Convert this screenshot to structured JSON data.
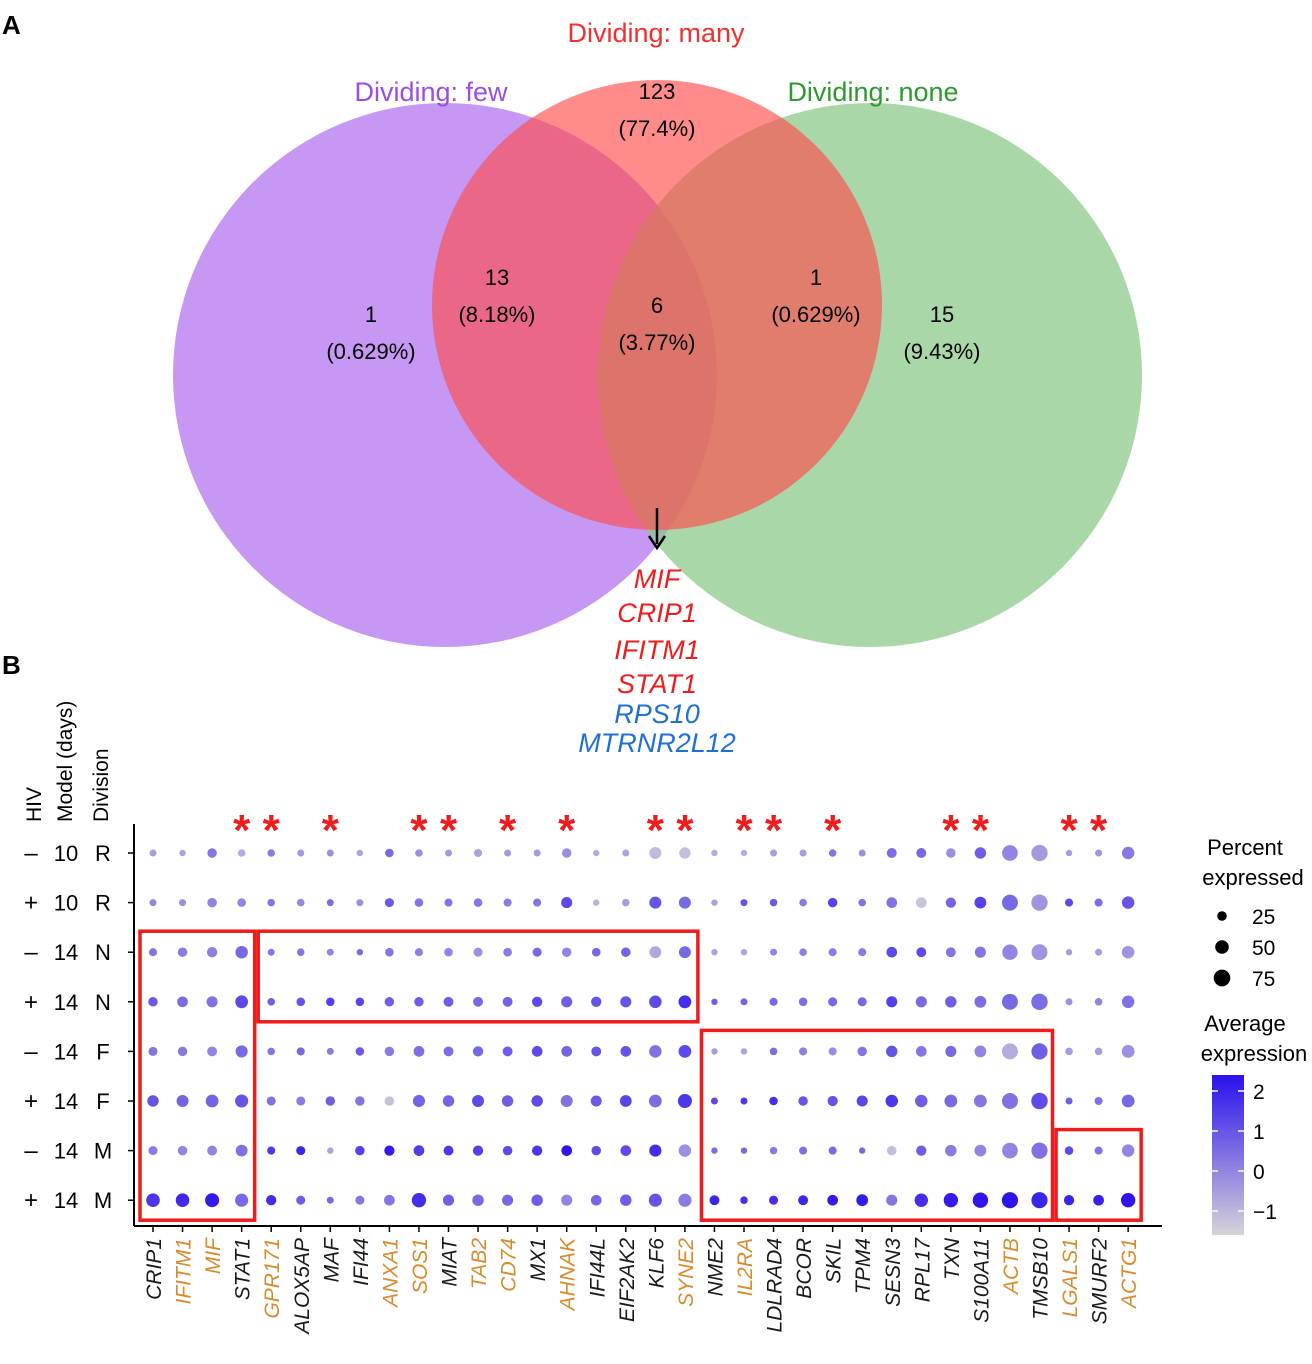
{
  "panels": {
    "a": "A",
    "b": "B"
  },
  "colors": {
    "few": "#9a4de6",
    "many": "#f0302e",
    "none": "#2e9a2e",
    "few_fill": "#c391f2",
    "many_fill": "#ff4d4d",
    "none_fill": "#8ec98b",
    "star": "#ee1c1c",
    "orange_gene": "#d98a2d",
    "black_gene": "#1a1a1a",
    "red_gene": "#ee1c1c",
    "blue_gene": "#1f6fd6",
    "box": "#ee1c1c",
    "color_high": "#2a10ee",
    "color_low": "#d6d3d8"
  },
  "venn": {
    "sets": {
      "few": "Dividing: few",
      "many": "Dividing: many",
      "none": "Dividing: none"
    },
    "regions": {
      "few_only": {
        "count": "1",
        "pct": "(0.629%)"
      },
      "many_only": {
        "count": "123",
        "pct": "(77.4%)"
      },
      "none_only": {
        "count": "15",
        "pct": "(9.43%)"
      },
      "few_many": {
        "count": "13",
        "pct": "(8.18%)"
      },
      "many_none": {
        "count": "1",
        "pct": "(0.629%)"
      },
      "all": {
        "count": "6",
        "pct": "(3.77%)"
      }
    },
    "shared_genes": [
      {
        "name": "MIF",
        "color": "red"
      },
      {
        "name": "CRIP1",
        "color": "red"
      },
      {
        "name": "IFITM1",
        "color": "red"
      },
      {
        "name": "STAT1",
        "color": "red"
      },
      {
        "name": "RPS10",
        "color": "blue"
      },
      {
        "name": "MTRNR2L12",
        "color": "blue"
      }
    ]
  },
  "chart_data": {
    "type": "dotplot",
    "title": "",
    "row_header_labels": [
      "HIV",
      "Model (days)",
      "Division"
    ],
    "rows": [
      {
        "hiv": "–",
        "days": "10",
        "div": "R"
      },
      {
        "hiv": "+",
        "days": "10",
        "div": "R"
      },
      {
        "hiv": "–",
        "days": "14",
        "div": "N"
      },
      {
        "hiv": "+",
        "days": "14",
        "div": "N"
      },
      {
        "hiv": "–",
        "days": "14",
        "div": "F"
      },
      {
        "hiv": "+",
        "days": "14",
        "div": "F"
      },
      {
        "hiv": "–",
        "days": "14",
        "div": "M"
      },
      {
        "hiv": "+",
        "days": "14",
        "div": "M"
      }
    ],
    "genes": [
      {
        "name": "CRIP1",
        "color": "black",
        "star": false
      },
      {
        "name": "IFITM1",
        "color": "orange",
        "star": false
      },
      {
        "name": "MIF",
        "color": "orange",
        "star": false
      },
      {
        "name": "STAT1",
        "color": "black",
        "star": true
      },
      {
        "name": "GPR171",
        "color": "orange",
        "star": true
      },
      {
        "name": "ALOX5AP",
        "color": "black",
        "star": false
      },
      {
        "name": "MAF",
        "color": "black",
        "star": true
      },
      {
        "name": "IFI44",
        "color": "black",
        "star": false
      },
      {
        "name": "ANXA1",
        "color": "orange",
        "star": false
      },
      {
        "name": "SOS1",
        "color": "orange",
        "star": true
      },
      {
        "name": "MIAT",
        "color": "black",
        "star": true
      },
      {
        "name": "TAB2",
        "color": "orange",
        "star": false
      },
      {
        "name": "CD74",
        "color": "orange",
        "star": true
      },
      {
        "name": "MX1",
        "color": "black",
        "star": false
      },
      {
        "name": "AHNAK",
        "color": "orange",
        "star": true
      },
      {
        "name": "IFI44L",
        "color": "black",
        "star": false
      },
      {
        "name": "EIF2AK2",
        "color": "black",
        "star": false
      },
      {
        "name": "KLF6",
        "color": "black",
        "star": true
      },
      {
        "name": "SYNE2",
        "color": "orange",
        "star": true
      },
      {
        "name": "NME2",
        "color": "black",
        "star": false
      },
      {
        "name": "IL2RA",
        "color": "orange",
        "star": true
      },
      {
        "name": "LDLRAD4",
        "color": "black",
        "star": true
      },
      {
        "name": "BCOR",
        "color": "black",
        "star": false
      },
      {
        "name": "SKIL",
        "color": "black",
        "star": true
      },
      {
        "name": "TPM4",
        "color": "black",
        "star": false
      },
      {
        "name": "SESN3",
        "color": "black",
        "star": false
      },
      {
        "name": "RPL17",
        "color": "black",
        "star": false
      },
      {
        "name": "TXN",
        "color": "black",
        "star": true
      },
      {
        "name": "S100A11",
        "color": "black",
        "star": true
      },
      {
        "name": "ACTB",
        "color": "orange",
        "star": false
      },
      {
        "name": "TMSB10",
        "color": "black",
        "star": false
      },
      {
        "name": "LGALS1",
        "color": "orange",
        "star": true
      },
      {
        "name": "SMURF2",
        "color": "black",
        "star": true
      },
      {
        "name": "ACTG1",
        "color": "orange",
        "star": false
      }
    ],
    "star_symbol": "*",
    "size": [
      [
        12,
        10,
        22,
        14,
        14,
        12,
        12,
        10,
        18,
        14,
        12,
        16,
        12,
        12,
        22,
        10,
        12,
        35,
        32,
        10,
        10,
        12,
        12,
        14,
        12,
        24,
        24,
        22,
        32,
        60,
        65,
        10,
        12,
        38
      ],
      [
        12,
        12,
        22,
        18,
        14,
        14,
        12,
        12,
        20,
        18,
        16,
        18,
        16,
        16,
        30,
        10,
        14,
        35,
        35,
        10,
        12,
        14,
        14,
        22,
        14,
        28,
        28,
        26,
        34,
        62,
        65,
        16,
        16,
        38
      ],
      [
        16,
        22,
        26,
        38,
        12,
        14,
        12,
        10,
        18,
        16,
        18,
        20,
        18,
        20,
        22,
        18,
        22,
        34,
        35,
        10,
        10,
        12,
        14,
        16,
        16,
        28,
        24,
        24,
        30,
        58,
        62,
        10,
        12,
        38
      ],
      [
        22,
        28,
        30,
        40,
        14,
        18,
        18,
        18,
        22,
        22,
        24,
        24,
        24,
        26,
        30,
        26,
        30,
        38,
        40,
        10,
        12,
        16,
        18,
        20,
        20,
        30,
        30,
        32,
        34,
        62,
        66,
        12,
        14,
        38
      ],
      [
        20,
        22,
        24,
        36,
        14,
        16,
        12,
        18,
        22,
        28,
        24,
        26,
        24,
        28,
        28,
        24,
        28,
        38,
        40,
        10,
        10,
        14,
        16,
        16,
        22,
        32,
        28,
        30,
        34,
        62,
        64,
        14,
        14,
        40
      ],
      [
        32,
        35,
        40,
        42,
        20,
        20,
        22,
        22,
        22,
        36,
        32,
        35,
        32,
        32,
        35,
        30,
        34,
        40,
        48,
        12,
        12,
        18,
        22,
        26,
        30,
        38,
        38,
        40,
        40,
        62,
        66,
        12,
        16,
        40
      ],
      [
        20,
        22,
        24,
        34,
        16,
        20,
        10,
        22,
        26,
        28,
        24,
        26,
        22,
        26,
        28,
        22,
        28,
        36,
        38,
        10,
        10,
        14,
        16,
        16,
        10,
        22,
        26,
        32,
        34,
        60,
        64,
        18,
        16,
        38
      ],
      [
        45,
        45,
        48,
        42,
        26,
        20,
        12,
        20,
        28,
        50,
        30,
        32,
        30,
        32,
        30,
        28,
        32,
        42,
        42,
        24,
        14,
        20,
        24,
        28,
        34,
        30,
        44,
        50,
        58,
        64,
        64,
        26,
        28,
        50
      ]
    ],
    "expr": [
      [
        -0.5,
        -0.6,
        0.3,
        -0.8,
        0.2,
        -0.4,
        -0.2,
        -0.6,
        0.6,
        -0.2,
        -0.4,
        -0.6,
        -0.4,
        -0.4,
        -0.2,
        -0.8,
        -0.6,
        -1.1,
        -1.2,
        -0.8,
        -0.8,
        -0.5,
        -0.5,
        0.3,
        -0.2,
        0.5,
        0.6,
        -0.2,
        0.8,
        0.0,
        -0.4,
        -0.5,
        -0.3,
        0.2
      ],
      [
        0.0,
        -0.2,
        0.0,
        0.0,
        0.3,
        -0.1,
        0.5,
        -0.2,
        0.9,
        0.3,
        0.3,
        0.3,
        0.2,
        0.3,
        1.2,
        -0.9,
        -0.5,
        1.0,
        0.6,
        -0.6,
        1.0,
        0.9,
        0.2,
        1.4,
        0.4,
        0.4,
        -1.3,
        0.7,
        1.4,
        0.6,
        -0.3,
        1.2,
        0.5,
        1.0
      ],
      [
        0.3,
        0.2,
        0.1,
        0.6,
        0.3,
        0.3,
        0.0,
        0.6,
        0.3,
        0.1,
        0.0,
        -0.2,
        0.2,
        0.6,
        0.0,
        0.6,
        0.7,
        -0.7,
        0.6,
        -0.6,
        -0.6,
        0.0,
        0.1,
        0.2,
        0.2,
        1.2,
        1.2,
        0.3,
        0.3,
        0.0,
        -0.3,
        -0.5,
        -0.5,
        -0.3
      ],
      [
        0.9,
        0.5,
        0.4,
        1.2,
        0.8,
        1.0,
        1.4,
        1.3,
        0.8,
        0.8,
        0.8,
        0.6,
        0.7,
        1.2,
        0.8,
        1.0,
        1.0,
        1.2,
        1.8,
        0.8,
        0.7,
        0.6,
        0.5,
        0.6,
        0.6,
        1.4,
        0.6,
        0.8,
        0.5,
        0.6,
        0.5,
        -0.2,
        0.0,
        0.4
      ],
      [
        0.3,
        0.2,
        0.0,
        0.6,
        0.3,
        0.6,
        0.2,
        0.9,
        0.2,
        0.5,
        0.5,
        0.6,
        0.8,
        1.2,
        0.7,
        1.0,
        1.0,
        0.4,
        1.2,
        -0.4,
        -0.6,
        0.5,
        0.1,
        -0.2,
        0.3,
        1.0,
        0.3,
        0.6,
        0.0,
        -0.8,
        0.8,
        -0.5,
        -0.5,
        -0.2
      ],
      [
        1.0,
        0.7,
        0.7,
        1.0,
        0.4,
        0.2,
        0.8,
        0.3,
        -1.2,
        0.7,
        0.7,
        1.2,
        0.8,
        1.2,
        0.4,
        0.9,
        1.3,
        0.5,
        1.6,
        1.2,
        1.6,
        1.8,
        1.0,
        1.0,
        1.3,
        1.6,
        0.8,
        0.6,
        0.3,
        0.4,
        1.2,
        0.8,
        0.4,
        0.6
      ],
      [
        0.2,
        0.0,
        0.0,
        0.4,
        1.6,
        2.0,
        -0.6,
        1.4,
        2.2,
        1.5,
        1.6,
        1.4,
        1.2,
        1.6,
        2.3,
        1.2,
        1.2,
        1.8,
        -0.2,
        0.5,
        0.6,
        0.2,
        0.4,
        0.6,
        0.6,
        -1.2,
        0.8,
        0.2,
        0.0,
        0.0,
        0.4,
        1.2,
        0.4,
        0.0
      ],
      [
        1.6,
        1.9,
        2.2,
        0.6,
        1.8,
        0.8,
        0.6,
        0.3,
        0.3,
        1.8,
        0.8,
        0.6,
        0.6,
        0.8,
        0.0,
        0.6,
        0.8,
        1.0,
        0.2,
        2.0,
        1.8,
        1.8,
        2.0,
        2.2,
        2.2,
        0.3,
        1.8,
        2.2,
        2.3,
        2.3,
        2.0,
        2.0,
        2.1,
        2.3
      ]
    ],
    "boxes": [
      {
        "from_gene": "CRIP1",
        "to_gene": "STAT1",
        "from_row": 2,
        "to_row": 7
      },
      {
        "from_gene": "GPR171",
        "to_gene": "SYNE2",
        "from_row": 2,
        "to_row": 3
      },
      {
        "from_gene": "NME2",
        "to_gene": "TMSB10",
        "from_row": 4,
        "to_row": 7
      },
      {
        "from_gene": "LGALS1",
        "to_gene": "ACTG1",
        "from_row": 6,
        "to_row": 7
      }
    ],
    "size_legend": {
      "title": "Percent expressed",
      "values": [
        25,
        50,
        75
      ]
    },
    "color_legend": {
      "title": "Average expression",
      "range": [
        -1.6,
        2.4
      ],
      "ticks": [
        -1,
        0,
        1,
        2
      ]
    }
  }
}
